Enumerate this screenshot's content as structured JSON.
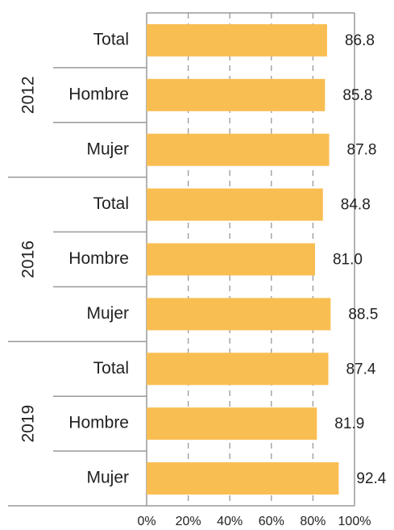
{
  "chart_data": {
    "type": "bar",
    "orientation": "horizontal",
    "groups": [
      "2012",
      "2016",
      "2019"
    ],
    "categories": [
      "Total",
      "Hombre",
      "Mujer",
      "Total",
      "Hombre",
      "Mujer",
      "Total",
      "Hombre",
      "Mujer"
    ],
    "values": [
      86.8,
      85.8,
      87.8,
      84.8,
      81.0,
      88.5,
      87.4,
      81.9,
      92.4
    ],
    "value_labels": [
      "86.8",
      "85.8",
      "87.8",
      "84.8",
      "81.0",
      "88.5",
      "87.4",
      "81.9",
      "92.4"
    ],
    "color": "#f9be52",
    "xlim": [
      0,
      100
    ],
    "xticks": [
      {
        "value": 0,
        "label": "0%"
      },
      {
        "value": 20,
        "label": "20%"
      },
      {
        "value": 40,
        "label": "40%"
      },
      {
        "value": 60,
        "label": "60%"
      },
      {
        "value": 80,
        "label": "80%"
      },
      {
        "value": 100,
        "label": "100%"
      }
    ],
    "grid": true
  }
}
